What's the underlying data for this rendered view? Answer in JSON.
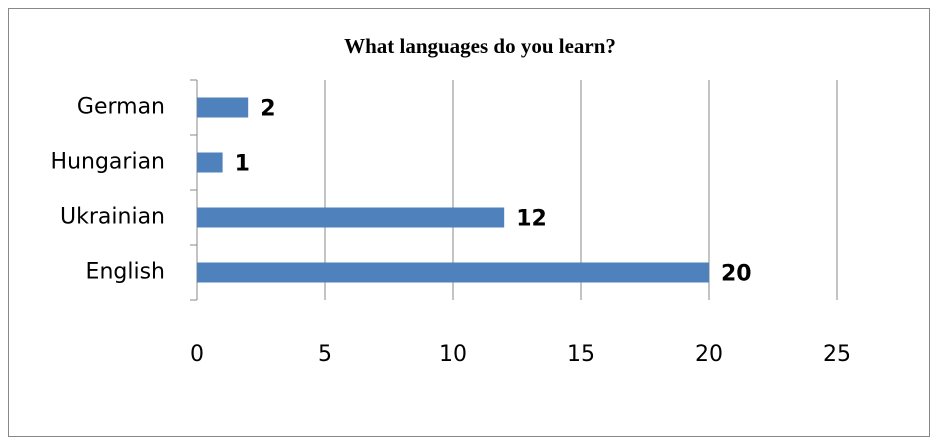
{
  "chart_data": {
    "type": "bar",
    "orientation": "horizontal",
    "title": "What languages do you learn?",
    "categories": [
      "German",
      "Hungarian",
      "Ukrainian",
      "English"
    ],
    "values": [
      2,
      1,
      12,
      20
    ],
    "color": "#4f81bd",
    "xlim": [
      0,
      25
    ],
    "xticks": [
      0,
      5,
      10,
      15,
      20,
      25
    ],
    "grid": true
  }
}
